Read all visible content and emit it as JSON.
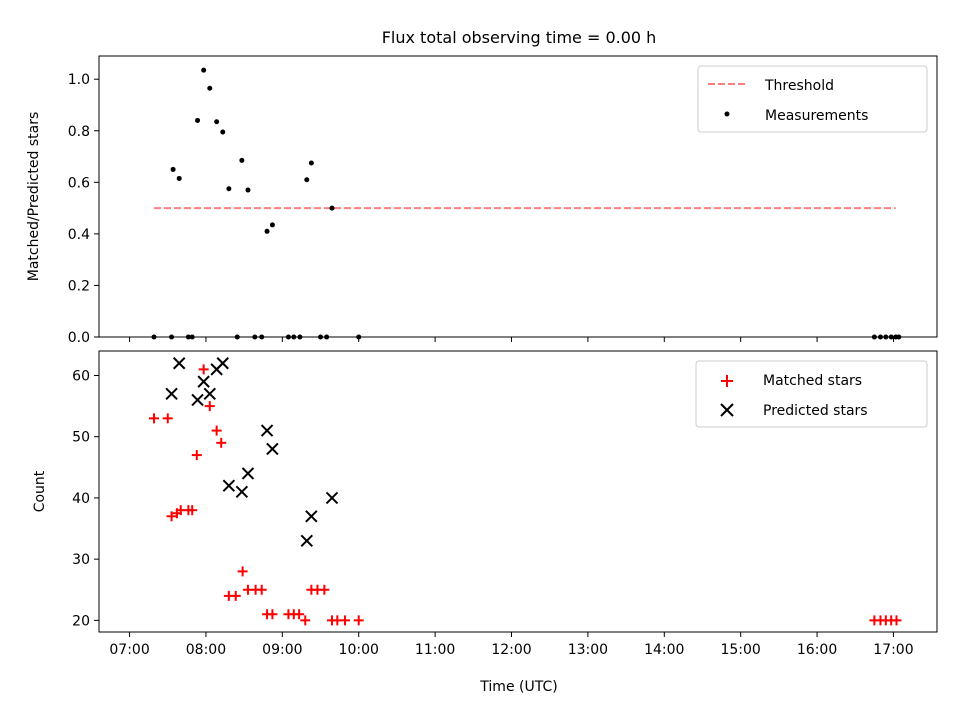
{
  "chart_data": {
    "title": "Flux total observing time = 0.00 h",
    "xlabel": "Time (UTC)",
    "xlim": [
      6.6,
      17.57
    ],
    "xticks": [
      7,
      8,
      9,
      10,
      11,
      12,
      13,
      14,
      15,
      16,
      17
    ],
    "xtick_labels": [
      "07:00",
      "08:00",
      "09:00",
      "10:00",
      "11:00",
      "12:00",
      "13:00",
      "14:00",
      "15:00",
      "16:00",
      "17:00"
    ],
    "panels": [
      {
        "type": "scatter",
        "ylabel": "Matched/Predicted stars",
        "ylim": [
          0,
          1.09
        ],
        "yticks": [
          0.0,
          0.2,
          0.4,
          0.6,
          0.8,
          1.0
        ],
        "ytick_labels": [
          "0.0",
          "0.2",
          "0.4",
          "0.6",
          "0.8",
          "1.0"
        ],
        "legend_position": "top-right",
        "series": [
          {
            "name": "Threshold",
            "kind": "dashed-line",
            "color": "#ff7f7f",
            "x": [
              7.32,
              17.03
            ],
            "y": [
              0.5,
              0.5
            ]
          },
          {
            "name": "Measurements",
            "kind": "dot",
            "color": "#000000",
            "x": [
              7.32,
              7.55,
              7.57,
              7.65,
              7.77,
              7.82,
              7.89,
              7.97,
              8.05,
              8.14,
              8.22,
              8.3,
              8.41,
              8.47,
              8.55,
              8.64,
              8.73,
              8.8,
              8.87,
              9.08,
              9.15,
              9.23,
              9.32,
              9.38,
              9.5,
              9.58,
              9.65,
              10.0,
              16.75,
              16.83,
              16.9,
              16.97,
              17.03,
              17.07
            ],
            "y": [
              0,
              0,
              0.65,
              0.615,
              0,
              0,
              0.84,
              1.035,
              0.965,
              0.835,
              0.795,
              0.575,
              0,
              0.685,
              0.57,
              0,
              0,
              0.41,
              0.435,
              0,
              0,
              0,
              0.61,
              0.675,
              0,
              0,
              0.5,
              0,
              0,
              0,
              0,
              0,
              0,
              0
            ]
          }
        ]
      },
      {
        "type": "scatter",
        "ylabel": "Count",
        "ylim": [
          18.1,
          64.0
        ],
        "yticks": [
          20,
          30,
          40,
          50,
          60
        ],
        "ytick_labels": [
          "20",
          "30",
          "40",
          "50",
          "60"
        ],
        "legend_position": "top-right",
        "series": [
          {
            "name": "Matched stars",
            "kind": "plus",
            "color": "#ff0000",
            "x": [
              7.32,
              7.5,
              7.55,
              7.62,
              7.67,
              7.77,
              7.82,
              7.88,
              7.97,
              8.05,
              8.14,
              8.2,
              8.3,
              8.39,
              8.48,
              8.55,
              8.65,
              8.73,
              8.8,
              8.87,
              9.08,
              9.15,
              9.22,
              9.3,
              9.38,
              9.46,
              9.55,
              9.65,
              9.72,
              9.82,
              10.0,
              16.75,
              16.83,
              16.9,
              16.97,
              17.04
            ],
            "y": [
              53,
              53,
              37,
              37.5,
              38,
              38,
              38,
              47,
              61,
              55,
              51,
              49,
              24,
              24,
              28,
              25,
              25,
              25,
              21,
              21,
              21,
              21,
              21,
              20,
              25,
              25,
              25,
              20,
              20,
              20,
              20,
              20,
              20,
              20,
              20,
              20
            ]
          },
          {
            "name": "Predicted stars",
            "kind": "x",
            "color": "#000000",
            "x": [
              7.55,
              7.65,
              7.89,
              7.97,
              8.05,
              8.14,
              8.22,
              8.3,
              8.47,
              8.55,
              8.8,
              8.87,
              9.32,
              9.38,
              9.65
            ],
            "y": [
              57,
              62,
              56,
              59,
              57,
              61,
              62,
              42,
              41,
              44,
              51,
              48,
              33,
              37,
              40
            ]
          }
        ]
      }
    ]
  }
}
